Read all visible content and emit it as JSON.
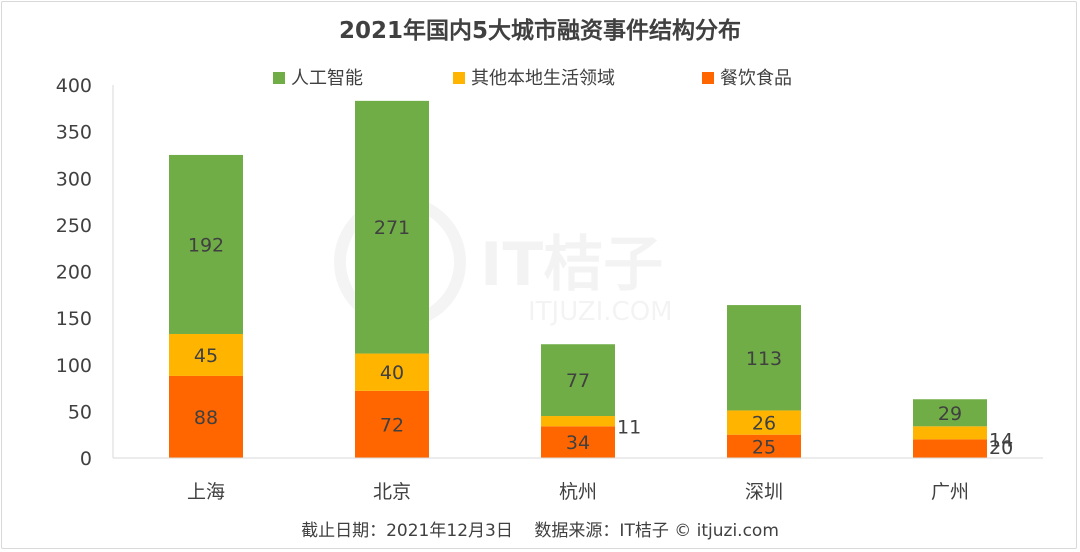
{
  "chart_data": {
    "type": "bar",
    "stacked": true,
    "title": "2021年国内5大城市融资事件结构分布",
    "categories": [
      "上海",
      "北京",
      "杭州",
      "深圳",
      "广州"
    ],
    "series": [
      {
        "name": "餐饮食品",
        "values": [
          88,
          72,
          34,
          25,
          20
        ],
        "color": "#ff6600"
      },
      {
        "name": "其他本地生活领域",
        "values": [
          45,
          40,
          11,
          26,
          14
        ],
        "color": "#ffb400"
      },
      {
        "name": "人工智能",
        "values": [
          192,
          271,
          77,
          113,
          29
        ],
        "color": "#70ad47"
      }
    ],
    "legend_order": [
      "人工智能",
      "其他本地生活领域",
      "餐饮食品"
    ],
    "legend_position": "top",
    "ylim": [
      0,
      400
    ],
    "yticks": [
      0,
      50,
      100,
      150,
      200,
      250,
      300,
      350,
      400
    ],
    "grid": false
  },
  "footer": {
    "source": "截止日期：2021年12月3日    数据来源：IT桔子 © itjuzi.com"
  },
  "watermark": {
    "brand": "IT桔子",
    "domain": "ITJUZI.COM"
  }
}
